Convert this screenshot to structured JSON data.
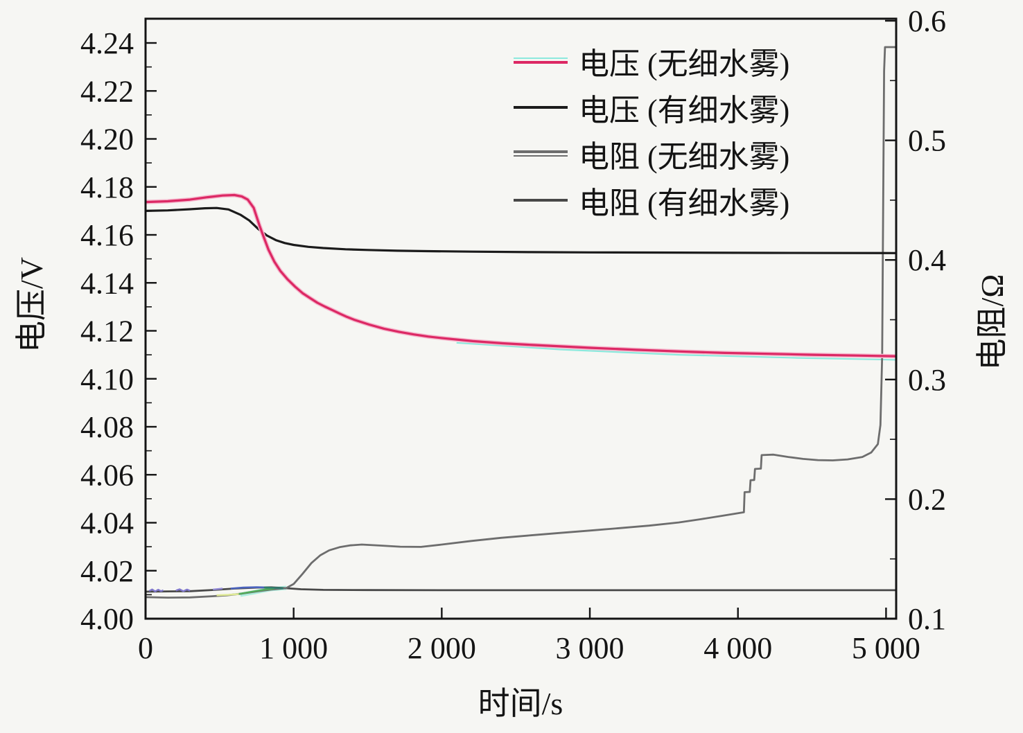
{
  "figure": {
    "background": "#f6f6f3",
    "ink": "#141414"
  },
  "chart_data": {
    "type": "line",
    "title": "",
    "xlabel": "时间/s",
    "ylabel_left": "电压/V",
    "ylabel_right": "电阻/Ω",
    "grid": false,
    "axes": {
      "x": {
        "min": 0,
        "max": 5070,
        "ticks": [
          0,
          1000,
          2000,
          3000,
          4000,
          5000
        ],
        "tick_labels": [
          "0",
          "1 000",
          "2 000",
          "3 000",
          "4 000",
          "5 000"
        ]
      },
      "left": {
        "min": 4.0,
        "max": 4.25,
        "ticks": [
          4.0,
          4.02,
          4.04,
          4.06,
          4.08,
          4.1,
          4.12,
          4.14,
          4.16,
          4.18,
          4.2,
          4.22,
          4.24
        ],
        "tick_labels": [
          "4.00",
          "4.02",
          "4.04",
          "4.06",
          "4.08",
          "4.10",
          "4.12",
          "4.14",
          "4.16",
          "4.18",
          "4.20",
          "4.22",
          "4.24"
        ],
        "minor_ticks": [
          4.01,
          4.03,
          4.05,
          4.07,
          4.09,
          4.11,
          4.13,
          4.15,
          4.17,
          4.19,
          4.21,
          4.23
        ]
      },
      "right": {
        "min": 0.1,
        "max": 0.602,
        "ticks": [
          0.1,
          0.2,
          0.3,
          0.4,
          0.5,
          0.6
        ],
        "tick_labels": [
          "0.1",
          "0.2",
          "0.3",
          "0.4",
          "0.5",
          "0.6"
        ],
        "minor_ticks": [
          0.15,
          0.25,
          0.35,
          0.45,
          0.55
        ]
      }
    },
    "legend": {
      "position": "top-center-inside",
      "items": [
        {
          "label": "电压 (无细水雾)",
          "color": "#dc2864",
          "fringe_color": "#8ce9dd",
          "double": false
        },
        {
          "label": "电压 (有细水雾)",
          "color": "#1b1b1b",
          "fringe_color": null,
          "double": false
        },
        {
          "label": "电阻 (无细水雾)",
          "color": "#6d6d6d",
          "fringe_color": null,
          "double": true
        },
        {
          "label": "电阻 (有细水雾)",
          "color": "#484848",
          "fringe_color": null,
          "double": false
        }
      ]
    },
    "series": [
      {
        "name": "电压 (无细水雾)",
        "axis": "left",
        "color": "#dc2864",
        "halo": "#f5b8cd",
        "width": 3.2,
        "points": [
          [
            0,
            4.1737
          ],
          [
            150,
            4.174
          ],
          [
            300,
            4.1747
          ],
          [
            420,
            4.1757
          ],
          [
            520,
            4.1764
          ],
          [
            600,
            4.1766
          ],
          [
            650,
            4.176
          ],
          [
            690,
            4.1747
          ],
          [
            730,
            4.1713
          ],
          [
            770,
            4.1638
          ],
          [
            800,
            4.1588
          ],
          [
            830,
            4.1538
          ],
          [
            870,
            4.1488
          ],
          [
            910,
            4.145
          ],
          [
            960,
            4.1414
          ],
          [
            1010,
            4.1384
          ],
          [
            1060,
            4.1357
          ],
          [
            1110,
            4.1337
          ],
          [
            1160,
            4.1317
          ],
          [
            1210,
            4.1301
          ],
          [
            1260,
            4.1287
          ],
          [
            1310,
            4.1272
          ],
          [
            1360,
            4.1258
          ],
          [
            1410,
            4.1246
          ],
          [
            1510,
            4.1226
          ],
          [
            1610,
            4.1209
          ],
          [
            1710,
            4.1196
          ],
          [
            1810,
            4.1185
          ],
          [
            1910,
            4.1176
          ],
          [
            2010,
            4.1169
          ],
          [
            2210,
            4.1157
          ],
          [
            2410,
            4.1148
          ],
          [
            2610,
            4.1141
          ],
          [
            2810,
            4.1135
          ],
          [
            3010,
            4.1129
          ],
          [
            3310,
            4.1121
          ],
          [
            3610,
            4.1114
          ],
          [
            3910,
            4.1108
          ],
          [
            4210,
            4.1104
          ],
          [
            4510,
            4.11
          ],
          [
            4810,
            4.1097
          ],
          [
            5070,
            4.1094
          ]
        ]
      },
      {
        "name": "电压 (有细水雾)",
        "axis": "left",
        "color": "#1b1b1b",
        "halo": null,
        "width": 3.2,
        "points": [
          [
            0,
            4.17
          ],
          [
            150,
            4.1702
          ],
          [
            300,
            4.1707
          ],
          [
            400,
            4.1711
          ],
          [
            480,
            4.1712
          ],
          [
            560,
            4.1706
          ],
          [
            640,
            4.1684
          ],
          [
            700,
            4.166
          ],
          [
            760,
            4.1625
          ],
          [
            820,
            4.1597
          ],
          [
            880,
            4.1578
          ],
          [
            940,
            4.1566
          ],
          [
            1000,
            4.1558
          ],
          [
            1100,
            4.155
          ],
          [
            1200,
            4.1545
          ],
          [
            1350,
            4.154
          ],
          [
            1500,
            4.1537
          ],
          [
            1700,
            4.1534
          ],
          [
            1900,
            4.1532
          ],
          [
            2200,
            4.153
          ],
          [
            2600,
            4.1528
          ],
          [
            3000,
            4.1527
          ],
          [
            3600,
            4.1526
          ],
          [
            4200,
            4.1525
          ],
          [
            5070,
            4.1524
          ]
        ]
      },
      {
        "name": "电阻 (无细水雾)",
        "axis": "right",
        "color": "#6d6d6d",
        "halo": null,
        "width": 2.8,
        "points": [
          [
            0,
            0.118
          ],
          [
            150,
            0.1176
          ],
          [
            300,
            0.1178
          ],
          [
            450,
            0.1188
          ],
          [
            550,
            0.1196
          ],
          [
            650,
            0.121
          ],
          [
            750,
            0.1228
          ],
          [
            850,
            0.1244
          ],
          [
            950,
            0.1256
          ],
          [
            1000,
            0.129
          ],
          [
            1060,
            0.1375
          ],
          [
            1120,
            0.1465
          ],
          [
            1180,
            0.153
          ],
          [
            1240,
            0.1572
          ],
          [
            1310,
            0.1598
          ],
          [
            1380,
            0.1613
          ],
          [
            1460,
            0.162
          ],
          [
            1580,
            0.1612
          ],
          [
            1720,
            0.1602
          ],
          [
            1860,
            0.16
          ],
          [
            2000,
            0.162
          ],
          [
            2200,
            0.165
          ],
          [
            2400,
            0.1676
          ],
          [
            2600,
            0.1697
          ],
          [
            2800,
            0.1717
          ],
          [
            3000,
            0.1737
          ],
          [
            3200,
            0.1757
          ],
          [
            3400,
            0.1778
          ],
          [
            3600,
            0.1805
          ],
          [
            3750,
            0.1832
          ],
          [
            3900,
            0.1862
          ],
          [
            4040,
            0.189
          ],
          [
            4045,
            0.2058
          ],
          [
            4080,
            0.206
          ],
          [
            4085,
            0.2158
          ],
          [
            4110,
            0.216
          ],
          [
            4115,
            0.2252
          ],
          [
            4155,
            0.2255
          ],
          [
            4160,
            0.2368
          ],
          [
            4240,
            0.2372
          ],
          [
            4340,
            0.2352
          ],
          [
            4440,
            0.2336
          ],
          [
            4540,
            0.2326
          ],
          [
            4640,
            0.2324
          ],
          [
            4740,
            0.2332
          ],
          [
            4840,
            0.2352
          ],
          [
            4900,
            0.239
          ],
          [
            4945,
            0.246
          ],
          [
            4962,
            0.262
          ],
          [
            4974,
            0.32
          ],
          [
            4981,
            0.45
          ],
          [
            4987,
            0.558
          ],
          [
            4993,
            0.578
          ],
          [
            5070,
            0.578
          ]
        ]
      },
      {
        "name": "电阻 (有细水雾)",
        "axis": "right",
        "color": "#484848",
        "halo": null,
        "width": 2.8,
        "points": [
          [
            0,
            0.1226
          ],
          [
            150,
            0.1228
          ],
          [
            300,
            0.123
          ],
          [
            450,
            0.124
          ],
          [
            600,
            0.1252
          ],
          [
            750,
            0.126
          ],
          [
            850,
            0.1262
          ],
          [
            950,
            0.1255
          ],
          [
            1050,
            0.1246
          ],
          [
            1200,
            0.1241
          ],
          [
            1500,
            0.1239
          ],
          [
            2000,
            0.1238
          ],
          [
            3000,
            0.1238
          ],
          [
            4200,
            0.1238
          ],
          [
            5070,
            0.1238
          ]
        ]
      }
    ],
    "artifact_series": [
      {
        "name": "noise-mint",
        "axis": "right",
        "color": "#aeeede",
        "width": 6,
        "layer": "under",
        "points": [
          [
            640,
            0.12
          ],
          [
            740,
            0.1222
          ],
          [
            840,
            0.1246
          ],
          [
            950,
            0.1258
          ]
        ]
      },
      {
        "name": "noise-cyan-under-red",
        "axis": "left",
        "color": "#8ce9dd",
        "width": 2.2,
        "layer": "under",
        "points": [
          [
            2100,
            4.115
          ],
          [
            2800,
            4.1122
          ],
          [
            3600,
            4.11
          ],
          [
            4400,
            4.1087
          ],
          [
            5070,
            4.1079
          ]
        ]
      },
      {
        "name": "noise-yellow",
        "axis": "right",
        "color": "#e0ea96",
        "width": 2.6,
        "layer": "over",
        "points": [
          [
            480,
            0.1196
          ],
          [
            560,
            0.12
          ],
          [
            630,
            0.1206
          ]
        ]
      },
      {
        "name": "noise-green",
        "axis": "right",
        "color": "#53ab5a",
        "width": 2.6,
        "layer": "over",
        "points": [
          [
            630,
            0.1206
          ],
          [
            720,
            0.1226
          ],
          [
            810,
            0.1244
          ],
          [
            870,
            0.1252
          ]
        ]
      },
      {
        "name": "noise-blue",
        "axis": "right",
        "color": "#4b63bd",
        "width": 2.6,
        "layer": "over",
        "points": [
          [
            575,
            0.1252
          ],
          [
            660,
            0.126
          ],
          [
            750,
            0.1263
          ],
          [
            800,
            0.1262
          ]
        ]
      },
      {
        "name": "noise-teal",
        "axis": "right",
        "color": "#2f7d6e",
        "width": 2.6,
        "layer": "over",
        "points": [
          [
            800,
            0.1262
          ],
          [
            870,
            0.1258
          ],
          [
            930,
            0.1254
          ]
        ]
      },
      {
        "name": "noise-purple-1",
        "axis": "right",
        "color": "#8078cc",
        "width": 2.4,
        "layer": "over",
        "points": [
          [
            25,
            0.1232
          ],
          [
            45,
            0.1245
          ],
          [
            65,
            0.1228
          ],
          [
            85,
            0.1243
          ],
          [
            105,
            0.123
          ],
          [
            120,
            0.1238
          ]
        ]
      },
      {
        "name": "noise-purple-2",
        "axis": "right",
        "color": "#8078cc",
        "width": 2.4,
        "layer": "over",
        "points": [
          [
            205,
            0.1235
          ],
          [
            230,
            0.1246
          ],
          [
            255,
            0.123
          ],
          [
            280,
            0.1244
          ],
          [
            300,
            0.1234
          ]
        ]
      },
      {
        "name": "noise-purple-3",
        "axis": "right",
        "color": "#9088d4",
        "width": 2.4,
        "layer": "over",
        "points": [
          [
            455,
            0.1244
          ],
          [
            520,
            0.1252
          ]
        ]
      }
    ]
  }
}
